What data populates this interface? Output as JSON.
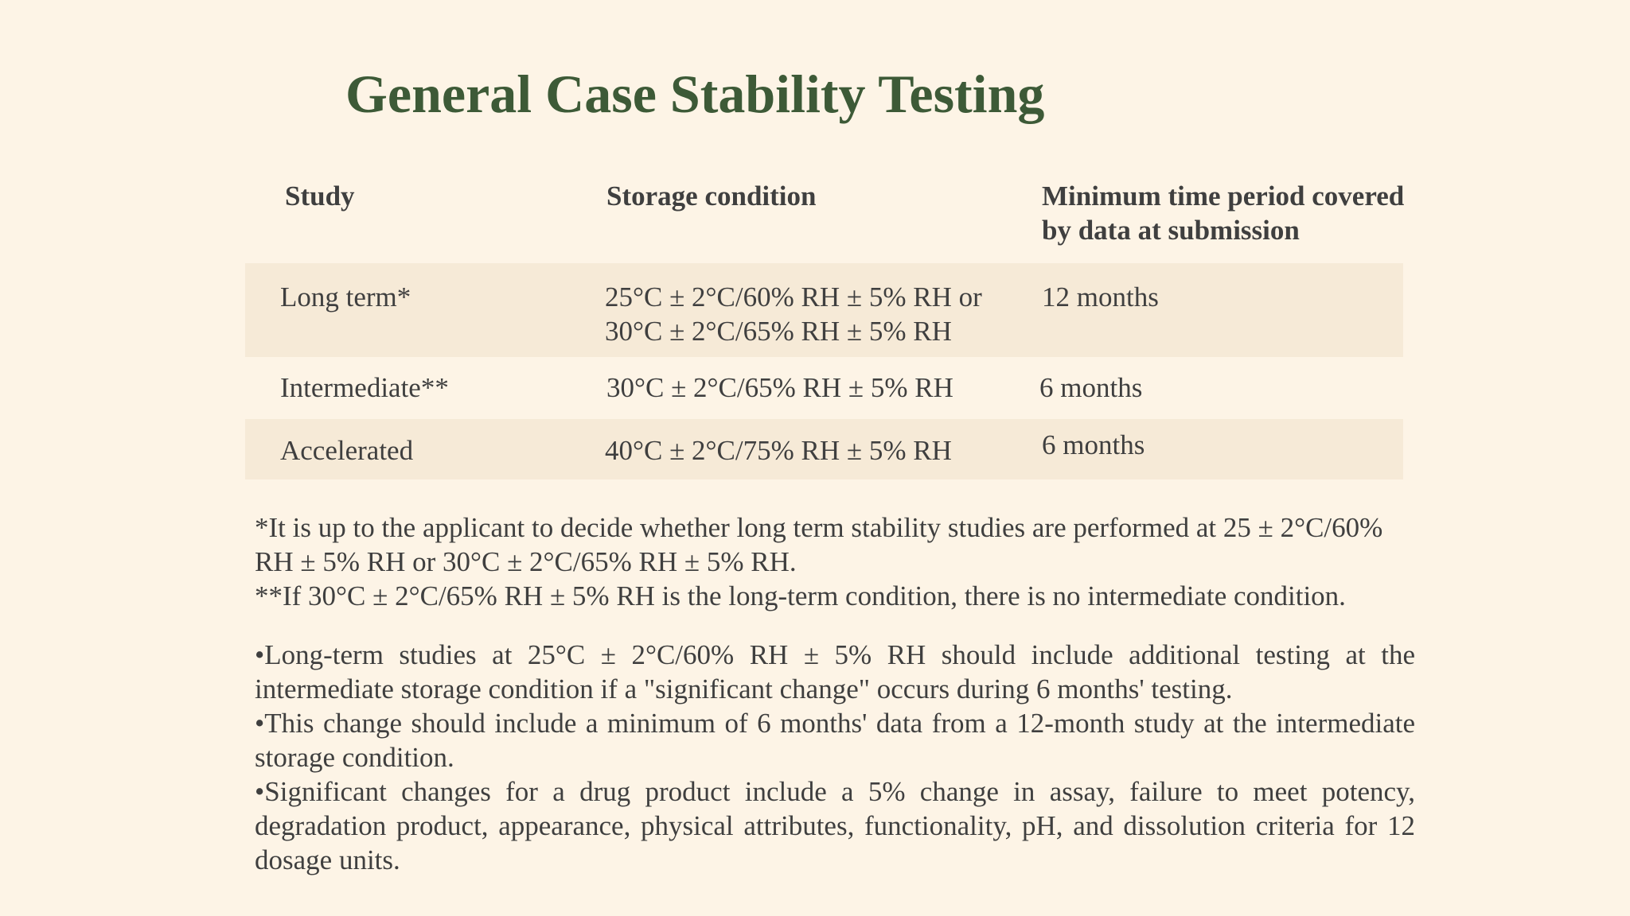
{
  "title": "General Case Stability Testing",
  "table": {
    "headers": {
      "study": "Study",
      "storage": "Storage condition",
      "period_line1": "Minimum time period covered",
      "period_line2": "by data at submission"
    },
    "rows": [
      {
        "study": "Long term*",
        "storage_line1": "25°C ± 2°C/60% RH ± 5% RH or",
        "storage_line2": "30°C ± 2°C/65% RH ± 5% RH",
        "period": "12 months"
      },
      {
        "study": "Intermediate**",
        "storage_line1": "30°C ± 2°C/65% RH ± 5% RH",
        "period": "6 months"
      },
      {
        "study": "Accelerated",
        "storage_line1": "40°C ± 2°C/75% RH ± 5% RH",
        "period": "6 months"
      }
    ]
  },
  "footnotes": [
    "*It is up to the applicant to decide whether long term stability studies are performed at 25 ± 2°C/60% RH ± 5% RH or 30°C ± 2°C/65% RH ± 5% RH.",
    "**If 30°C ± 2°C/65% RH ± 5% RH is the long-term condition, there is no intermediate condition."
  ],
  "bullets": [
    "•Long-term studies at 25°C ± 2°C/60% RH ± 5% RH should include additional testing at the intermediate storage condition if a \"significant change\" occurs during 6 months' testing.",
    "•This change should include a minimum of 6 months' data from a 12-month study at the intermediate storage condition.",
    "•Significant changes for a drug product include a 5% change in assay, failure to meet potency, degradation product, appearance, physical attributes, functionality, pH, and dissolution criteria for 12 dosage units."
  ],
  "colors": {
    "background": "#fdf4e6",
    "title": "#3d5a37",
    "row_shade": "#f6ead7",
    "text": "#3f3f3f"
  }
}
